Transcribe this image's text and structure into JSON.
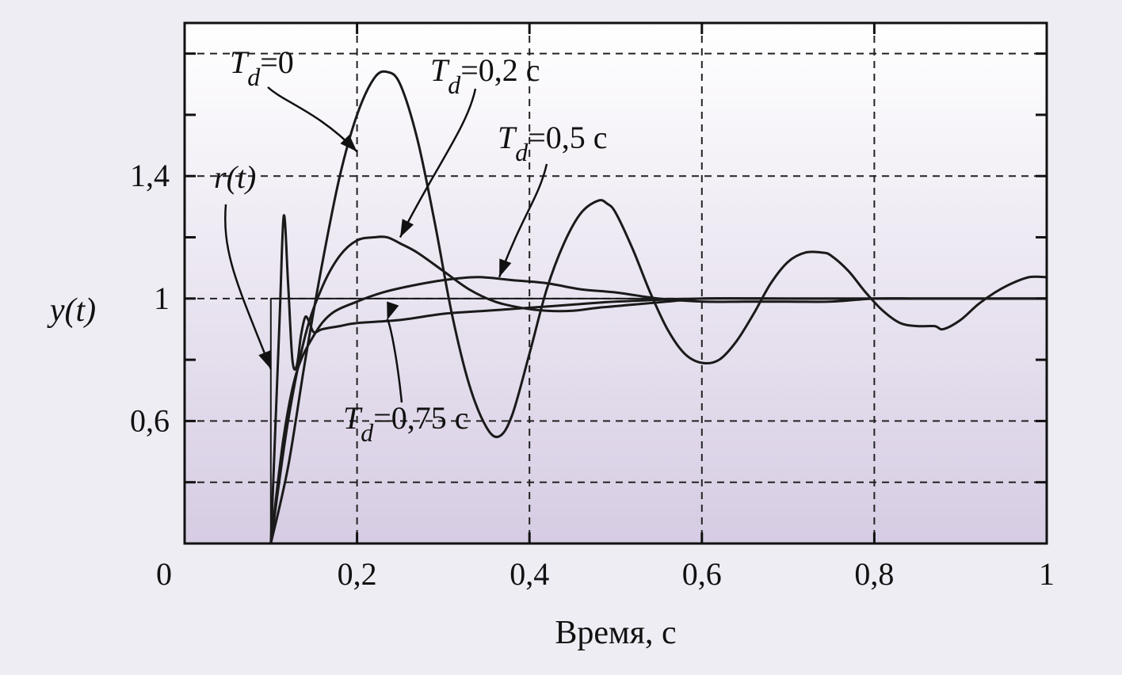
{
  "chart_data": {
    "type": "line",
    "title": "",
    "xlabel": "Время, с",
    "ylabel": "y(t)",
    "xlim": [
      0,
      1
    ],
    "ylim": [
      0.2,
      1.9
    ],
    "x_ticks": [
      0,
      0.2,
      0.4,
      0.6,
      0.8,
      1
    ],
    "x_tick_labels": [
      "0",
      "0,2",
      "0,4",
      "0,6",
      "0,8",
      "1"
    ],
    "y_ticks": [
      0.6,
      1.0,
      1.4
    ],
    "y_tick_labels": [
      "0,6",
      "1",
      "1,4"
    ],
    "y_gridlines": [
      0.4,
      0.6,
      1.0,
      1.4,
      1.8
    ],
    "y_minor_ticks": [
      0.4,
      0.8,
      1.2,
      1.6,
      1.8
    ],
    "grid": true,
    "series": [
      {
        "name": "r(t)",
        "x": [
          0.0,
          0.1,
          0.1,
          1.0
        ],
        "y": [
          0.2,
          0.2,
          1.0,
          1.0
        ]
      },
      {
        "name": "T_d=0",
        "x": [
          0.1,
          0.12,
          0.14,
          0.16,
          0.18,
          0.2,
          0.22,
          0.235,
          0.25,
          0.27,
          0.29,
          0.31,
          0.33,
          0.35,
          0.365,
          0.38,
          0.4,
          0.42,
          0.44,
          0.46,
          0.48,
          0.49,
          0.5,
          0.52,
          0.54,
          0.56,
          0.58,
          0.6,
          0.62,
          0.64,
          0.66,
          0.68,
          0.7,
          0.72,
          0.74,
          0.75,
          0.77,
          0.79,
          0.81,
          0.83,
          0.85,
          0.87,
          0.88,
          0.9,
          0.92,
          0.94,
          0.96,
          0.98,
          1.0
        ],
        "y": [
          0.2,
          0.45,
          0.8,
          1.12,
          1.4,
          1.6,
          1.72,
          1.74,
          1.7,
          1.52,
          1.25,
          0.95,
          0.72,
          0.58,
          0.55,
          0.62,
          0.82,
          1.03,
          1.18,
          1.28,
          1.32,
          1.31,
          1.28,
          1.16,
          1.02,
          0.9,
          0.82,
          0.79,
          0.8,
          0.86,
          0.95,
          1.05,
          1.12,
          1.15,
          1.15,
          1.14,
          1.09,
          1.02,
          0.96,
          0.92,
          0.91,
          0.91,
          0.9,
          0.93,
          0.98,
          1.02,
          1.05,
          1.07,
          1.07
        ]
      },
      {
        "name": "T_d=0,2 с",
        "x": [
          0.1,
          0.12,
          0.14,
          0.16,
          0.18,
          0.2,
          0.22,
          0.235,
          0.25,
          0.27,
          0.3,
          0.33,
          0.36,
          0.39,
          0.42,
          0.45,
          0.48,
          0.52,
          0.56,
          0.6,
          0.65,
          0.7,
          0.75,
          0.8,
          0.85,
          0.9,
          0.95,
          1.0
        ],
        "y": [
          0.2,
          0.6,
          0.88,
          1.04,
          1.14,
          1.19,
          1.2,
          1.2,
          1.18,
          1.15,
          1.09,
          1.03,
          0.99,
          0.97,
          0.96,
          0.96,
          0.97,
          0.98,
          0.99,
          1.0,
          1.0,
          1.0,
          1.0,
          1.0,
          1.0,
          1.0,
          1.0,
          1.0
        ]
      },
      {
        "name": "T_d=0,5 с",
        "x": [
          0.1,
          0.115,
          0.13,
          0.15,
          0.17,
          0.2,
          0.23,
          0.26,
          0.3,
          0.34,
          0.38,
          0.42,
          0.46,
          0.5,
          0.55,
          0.6,
          0.65,
          0.7,
          0.75,
          0.8,
          0.85,
          0.9,
          0.95,
          1.0
        ],
        "y": [
          0.2,
          0.55,
          0.76,
          0.88,
          0.95,
          0.99,
          1.02,
          1.04,
          1.06,
          1.07,
          1.06,
          1.05,
          1.03,
          1.02,
          1.0,
          0.99,
          0.99,
          0.99,
          0.99,
          1.0,
          1.0,
          1.0,
          1.0,
          1.0
        ]
      },
      {
        "name": "T_d=0,75 с",
        "x": [
          0.1,
          0.11,
          0.115,
          0.12,
          0.125,
          0.13,
          0.135,
          0.14,
          0.145,
          0.15,
          0.16,
          0.18,
          0.2,
          0.25,
          0.3,
          0.35,
          0.4,
          0.45,
          0.5,
          0.6,
          0.7,
          0.8,
          0.9,
          1.0
        ],
        "y": [
          0.2,
          0.92,
          1.27,
          1.05,
          0.8,
          0.78,
          0.88,
          0.94,
          0.92,
          0.89,
          0.9,
          0.91,
          0.92,
          0.93,
          0.95,
          0.96,
          0.97,
          0.98,
          0.99,
          1.0,
          1.0,
          1.0,
          1.0,
          1.0
        ]
      }
    ],
    "annotations": [
      {
        "series": "T_d=0",
        "base": "T",
        "sub": "d",
        "rest": "=0",
        "points_to": [
          0.2,
          1.48
        ]
      },
      {
        "series": "T_d=0,2 с",
        "base": "T",
        "sub": "d",
        "rest": "=0,2 с",
        "points_to": [
          0.25,
          1.2
        ]
      },
      {
        "series": "T_d=0,5 с",
        "base": "T",
        "sub": "d",
        "rest": "=0,5 с",
        "points_to": [
          0.365,
          1.07
        ]
      },
      {
        "series": "T_d=0,75 с",
        "base": "T",
        "sub": "d",
        "rest": "=0,75 с",
        "points_to": [
          0.235,
          0.93
        ]
      },
      {
        "series": "r(t)",
        "base": "r(t)",
        "sub": "",
        "rest": "",
        "points_to": [
          0.1,
          0.77
        ]
      }
    ]
  }
}
